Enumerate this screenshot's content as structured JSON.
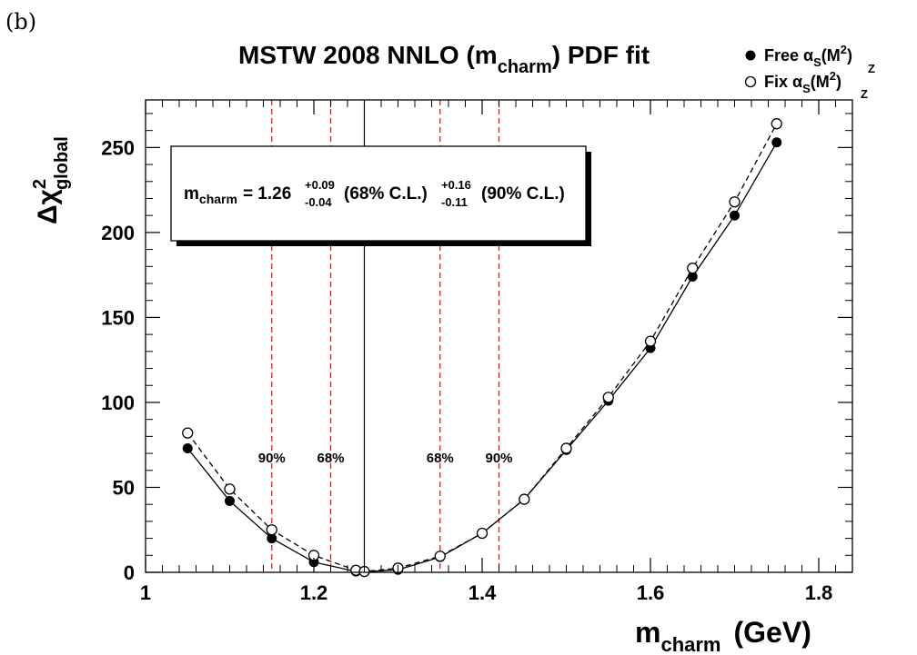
{
  "panel_label": "(b)",
  "chart_data": {
    "type": "scatter",
    "title": "MSTW 2008 NNLO (m",
    "title_sub": "charm",
    "title_end": ") PDF fit",
    "xlabel": "m",
    "xlabel_sub": "charm",
    "xlabel_unit": "(GeV)",
    "ylabel": "Δχ",
    "ylabel_sup": "2",
    "ylabel_sub": "global",
    "xlim": [
      1.0,
      1.84
    ],
    "ylim": [
      0,
      278
    ],
    "xticks": [
      "1",
      "1.2",
      "1.4",
      "1.6",
      "1.8"
    ],
    "yticks": [
      "0",
      "50",
      "100",
      "150",
      "200",
      "250"
    ],
    "xtick_values": [
      1.0,
      1.2,
      1.4,
      1.6,
      1.8
    ],
    "ytick_values": [
      0,
      50,
      100,
      150,
      200,
      250
    ],
    "legend": [
      {
        "label": "Free α",
        "marker": "filled-circle"
      },
      {
        "label": "Fix α",
        "marker": "open-circle"
      }
    ],
    "legend_sub": "S",
    "legend_arg": "(M",
    "legend_arg_sup": "2",
    "legend_arg_sub": "Z",
    "legend_close": ")",
    "legend_placement": "top-right outside",
    "series": [
      {
        "name": "Free α",
        "marker": "filled-circle",
        "line": "solid",
        "x": [
          1.05,
          1.1,
          1.15,
          1.2,
          1.25,
          1.26,
          1.3,
          1.35,
          1.4,
          1.45,
          1.5,
          1.55,
          1.6,
          1.65,
          1.7,
          1.75
        ],
        "y": [
          73,
          42,
          20,
          6,
          0.5,
          0.3,
          1.5,
          9,
          23,
          43,
          72,
          101,
          132,
          174,
          210,
          253
        ]
      },
      {
        "name": "Fix α",
        "marker": "open-circle",
        "line": "dashed",
        "x": [
          1.05,
          1.1,
          1.15,
          1.2,
          1.25,
          1.26,
          1.3,
          1.35,
          1.4,
          1.45,
          1.5,
          1.55,
          1.6,
          1.65,
          1.7,
          1.75
        ],
        "y": [
          82,
          49,
          25,
          10,
          1.2,
          0.5,
          2.5,
          9.5,
          23,
          43,
          73,
          103,
          136,
          179,
          218,
          264
        ]
      }
    ],
    "vertical_lines": [
      {
        "x": 1.26,
        "style": "solid",
        "color": "#000000",
        "label": ""
      },
      {
        "x": 1.15,
        "style": "dashed",
        "color": "#ff0000",
        "label": "90%"
      },
      {
        "x": 1.22,
        "style": "dashed",
        "color": "#ff0000",
        "label": "68%"
      },
      {
        "x": 1.35,
        "style": "dashed",
        "color": "#ff0000",
        "label": "68%"
      },
      {
        "x": 1.42,
        "style": "dashed",
        "color": "#ff0000",
        "label": "90%"
      }
    ],
    "cl_label_y": 68,
    "annotation": {
      "var": "m",
      "var_sub": "charm",
      "central": "= 1.26",
      "cl68_up": "+0.09",
      "cl68_down": "-0.04",
      "cl68_text": "(68% C.L.)",
      "cl90_up": "+0.16",
      "cl90_down": "-0.11",
      "cl90_text": "(90% C.L.)"
    },
    "grid": false,
    "colors": {
      "axis": "#000000",
      "cl_lines": "#ff0000"
    }
  }
}
